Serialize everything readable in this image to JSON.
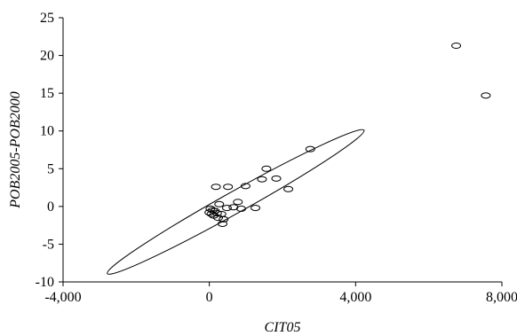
{
  "chart_data": {
    "type": "scatter",
    "title": "",
    "xlabel": "CIT05",
    "ylabel": "POB2005-POB2000",
    "xlim": [
      -4000,
      8000
    ],
    "ylim": [
      -10,
      25
    ],
    "xticks": [
      -4000,
      0,
      4000,
      8000
    ],
    "xtick_labels": [
      "-4,000",
      "0",
      "4,000",
      "8,000"
    ],
    "yticks": [
      -10,
      -5,
      0,
      5,
      10,
      15,
      20,
      25
    ],
    "ytick_labels": [
      "-10",
      "-5",
      "0",
      "5",
      "10",
      "15",
      "20",
      "25"
    ],
    "grid": false,
    "legend": "none",
    "confidence_ellipse": {
      "center": [
        720,
        0.9
      ],
      "semi_axes": [
        4050,
        1.5
      ],
      "endpoints": [
        [
          -2790,
          -8.9
        ],
        [
          4230,
          10.1
        ]
      ]
    },
    "points": [
      {
        "x": 6750,
        "y": 21.3
      },
      {
        "x": 7560,
        "y": 14.7
      },
      {
        "x": 2760,
        "y": 7.6
      },
      {
        "x": 1560,
        "y": 5.0
      },
      {
        "x": 1830,
        "y": 3.7
      },
      {
        "x": 1440,
        "y": 3.6
      },
      {
        "x": 990,
        "y": 2.7
      },
      {
        "x": 510,
        "y": 2.6
      },
      {
        "x": 180,
        "y": 2.6
      },
      {
        "x": 2160,
        "y": 2.3
      },
      {
        "x": 780,
        "y": 0.6
      },
      {
        "x": 270,
        "y": 0.3
      },
      {
        "x": 1260,
        "y": -0.2
      },
      {
        "x": 870,
        "y": -0.3
      },
      {
        "x": 660,
        "y": -0.1
      },
      {
        "x": 480,
        "y": -0.2
      },
      {
        "x": 30,
        "y": -0.3
      },
      {
        "x": 90,
        "y": -0.5
      },
      {
        "x": 150,
        "y": -0.6
      },
      {
        "x": 0,
        "y": -0.8
      },
      {
        "x": 210,
        "y": -0.9
      },
      {
        "x": 330,
        "y": -1.0
      },
      {
        "x": 60,
        "y": -1.0
      },
      {
        "x": 120,
        "y": -1.2
      },
      {
        "x": 240,
        "y": -1.5
      },
      {
        "x": 390,
        "y": -1.7
      },
      {
        "x": 360,
        "y": -2.3
      }
    ]
  }
}
